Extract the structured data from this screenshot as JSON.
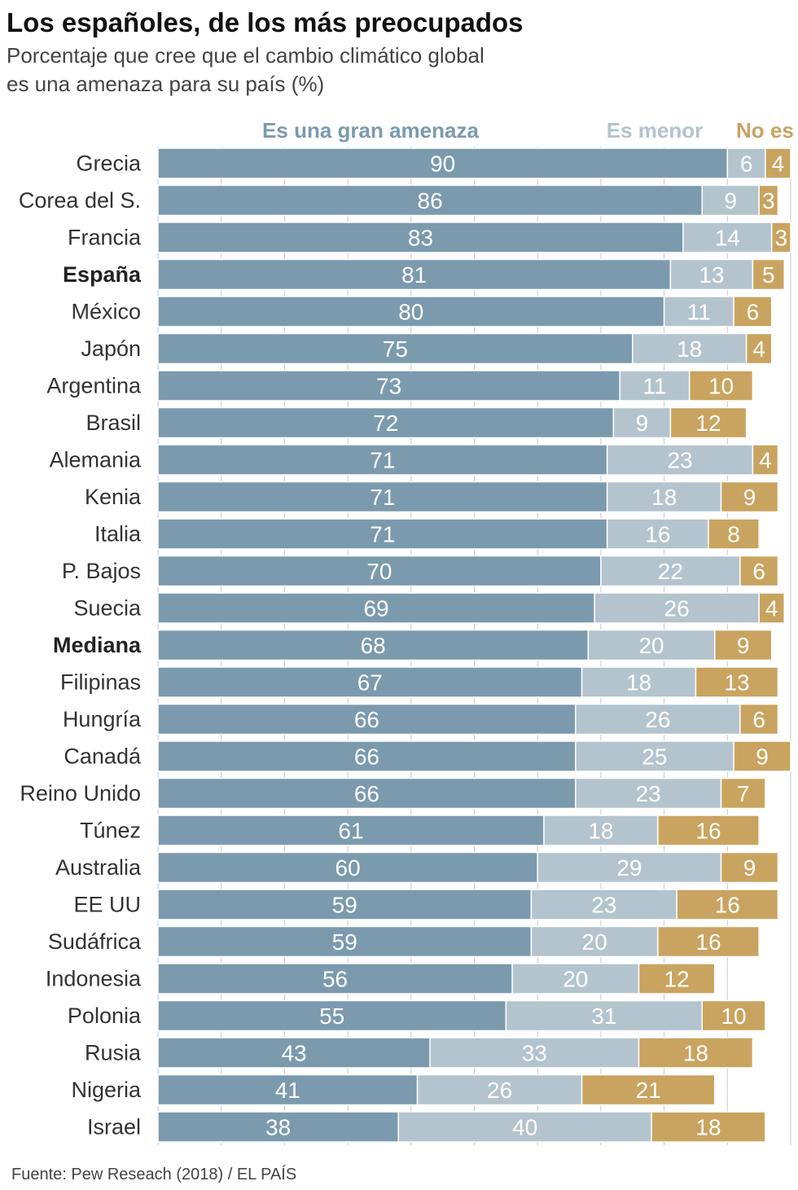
{
  "chart_data": {
    "type": "bar",
    "orientation": "horizontal",
    "stacked": true,
    "title": "Los españoles, de los más preocupados",
    "subtitle_line1": "Porcentaje que cree que el cambio climático global",
    "subtitle_line2": "es una amenaza para su país (%)",
    "source": "Fuente: Pew Reseach (2018) / EL PAÍS",
    "xlim": [
      0,
      100
    ],
    "grid": true,
    "legend_position": "top",
    "highlighted": [
      "España",
      "Mediana"
    ],
    "categories": [
      "Grecia",
      "Corea del S.",
      "Francia",
      "España",
      "México",
      "Japón",
      "Argentina",
      "Brasil",
      "Alemania",
      "Kenia",
      "Italia",
      "P. Bajos",
      "Suecia",
      "Mediana",
      "Filipinas",
      "Hungría",
      "Canadá",
      "Reino Unido",
      "Túnez",
      "Australia",
      "EE UU",
      "Sudáfrica",
      "Indonesia",
      "Polonia",
      "Rusia",
      "Nigeria",
      "Israel"
    ],
    "series": [
      {
        "name": "Es una gran amenaza",
        "color": "#7b9aae",
        "values": [
          90,
          86,
          83,
          81,
          80,
          75,
          73,
          72,
          71,
          71,
          71,
          70,
          69,
          68,
          67,
          66,
          66,
          66,
          61,
          60,
          59,
          59,
          56,
          55,
          43,
          41,
          38
        ]
      },
      {
        "name": "Es menor",
        "color": "#b4c4ce",
        "values": [
          6,
          9,
          14,
          13,
          11,
          18,
          11,
          9,
          23,
          18,
          16,
          22,
          26,
          20,
          18,
          26,
          25,
          23,
          18,
          29,
          23,
          20,
          20,
          31,
          33,
          26,
          40
        ]
      },
      {
        "name": "No es",
        "color": "#c9a460",
        "values": [
          4,
          3,
          3,
          5,
          6,
          4,
          10,
          12,
          4,
          9,
          8,
          6,
          4,
          9,
          13,
          6,
          9,
          7,
          16,
          9,
          16,
          16,
          12,
          10,
          18,
          21,
          18
        ]
      }
    ]
  }
}
